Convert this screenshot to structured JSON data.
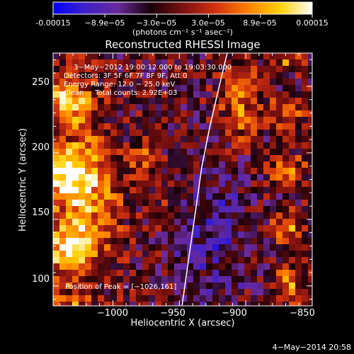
{
  "chart_data": {
    "type": "heatmap",
    "title": "Reconstructed RHESSI Image",
    "xlabel": "Heliocentric X (arcsec)",
    "ylabel": "Heliocentric Y (arcsec)",
    "xlim": [
      -1045,
      -850
    ],
    "ylim": [
      85,
      275
    ],
    "x_ticks": [
      -1000,
      -950,
      -900,
      -850
    ],
    "x_tick_labels": [
      "−1000",
      "−950",
      "−900",
      "−850"
    ],
    "y_ticks": [
      100,
      150,
      200,
      250
    ],
    "y_tick_labels": [
      "100",
      "150",
      "200",
      "250"
    ],
    "colorbar": {
      "range": [
        -0.00015,
        0.00015
      ],
      "tick_labels": [
        "-0.00015",
        "−8.9e−05",
        "−3.0e−05",
        "3.0e−05",
        "8.9e−05",
        "0.00015"
      ],
      "units_label": "(photons cm⁻² s⁻¹ asec⁻²)",
      "colormap": [
        "#0000ff",
        "#4020c8",
        "#6a2a9a",
        "#1a0008",
        "#7a1010",
        "#d03010",
        "#ff7f00",
        "#ffd000",
        "#ffffff"
      ]
    },
    "annotations": [
      "3−May−2012 19:00:12.000 to 19:03:30.000",
      "Detectors: 3F 5F 6F 7F 8F 9F, Att 0",
      "Energy Range: 12.0 − 25.0 keV",
      "Clean     Total counts: 2.92E+03"
    ],
    "peak_label": "Position of Peak = [−1026,161]",
    "peak_position": [
      -1026,
      161
    ],
    "limb_curve": {
      "x": [
        -948,
        -943,
        -938,
        -933,
        -927,
        -920,
        -914
      ],
      "y": [
        85,
        120,
        155,
        190,
        220,
        250,
        275
      ]
    },
    "grid": false
  },
  "footer": {
    "date": "4−May−2014 20:58"
  }
}
